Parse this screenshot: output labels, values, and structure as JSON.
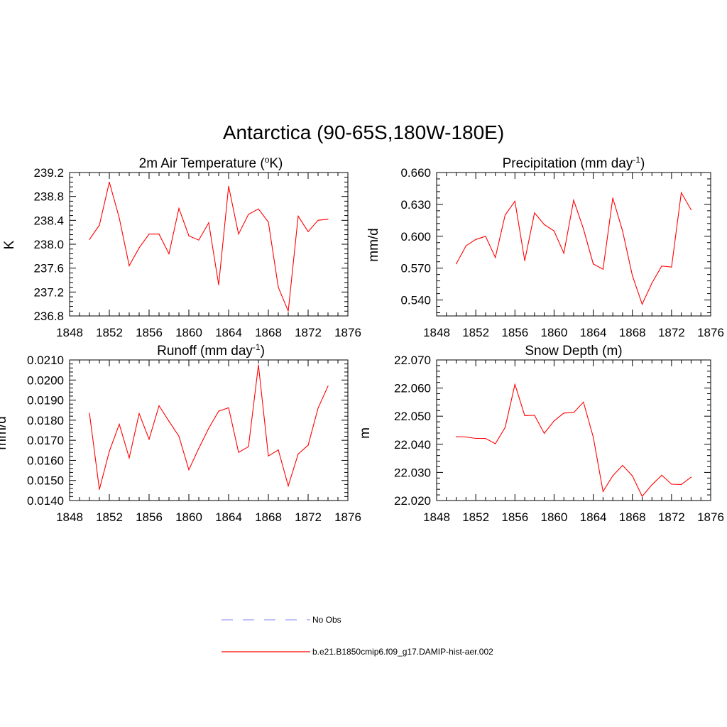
{
  "title": "Antarctica (90-65S,180W-180E)",
  "legend": [
    {
      "label": "No Obs",
      "color": "#9999ff",
      "dash": true
    },
    {
      "label": "b.e21.B1850cmip6.f09_g17.DAMIP-hist-aer.002",
      "color": "#ff0000",
      "dash": false
    }
  ],
  "chart_data": [
    {
      "type": "line",
      "title": "2m Air Temperature (oK)",
      "ylabel": "K",
      "xlim": [
        1848,
        1876
      ],
      "xticks": [
        "1848",
        "1852",
        "1856",
        "1860",
        "1864",
        "1868",
        "1872",
        "1876"
      ],
      "ylim": [
        236.8,
        239.2
      ],
      "yticks": [
        "236.8",
        "237.2",
        "237.6",
        "238.0",
        "238.4",
        "238.8",
        "239.2"
      ],
      "series": [
        {
          "color": "#ff0000",
          "x": [
            1850,
            1851,
            1852,
            1853,
            1854,
            1855,
            1856,
            1857,
            1858,
            1859,
            1860,
            1861,
            1862,
            1863,
            1864,
            1865,
            1866,
            1867,
            1868,
            1869,
            1870,
            1871,
            1872,
            1873,
            1874
          ],
          "y": [
            238.08,
            238.32,
            239.04,
            238.44,
            237.64,
            237.94,
            238.17,
            238.17,
            237.84,
            238.6,
            238.14,
            238.07,
            238.36,
            237.32,
            238.97,
            238.17,
            238.5,
            238.59,
            238.37,
            237.28,
            236.88,
            238.47,
            238.21,
            238.4,
            238.42
          ]
        }
      ]
    },
    {
      "type": "line",
      "title": "Precipitation (mm day-1)",
      "ylabel": "mm/d",
      "xlim": [
        1848,
        1876
      ],
      "xticks": [
        "1848",
        "1852",
        "1856",
        "1860",
        "1864",
        "1868",
        "1872",
        "1876"
      ],
      "ylim": [
        0.525,
        0.66
      ],
      "yticks": [
        "0.540",
        "0.570",
        "0.600",
        "0.630",
        "0.660"
      ],
      "series": [
        {
          "color": "#ff0000",
          "x": [
            1850,
            1851,
            1852,
            1853,
            1854,
            1855,
            1856,
            1857,
            1858,
            1859,
            1860,
            1861,
            1862,
            1863,
            1864,
            1865,
            1866,
            1867,
            1868,
            1869,
            1870,
            1871,
            1872,
            1873,
            1874
          ],
          "y": [
            0.574,
            0.591,
            0.597,
            0.6,
            0.58,
            0.62,
            0.633,
            0.577,
            0.622,
            0.611,
            0.605,
            0.584,
            0.634,
            0.607,
            0.574,
            0.569,
            0.636,
            0.605,
            0.563,
            0.536,
            0.556,
            0.572,
            0.571,
            0.641,
            0.625
          ]
        }
      ]
    },
    {
      "type": "line",
      "title": "Runoff (mm day-1)",
      "ylabel": "mm/d",
      "xlim": [
        1848,
        1876
      ],
      "xticks": [
        "1848",
        "1852",
        "1856",
        "1860",
        "1864",
        "1868",
        "1872",
        "1876"
      ],
      "ylim": [
        0.014,
        0.021
      ],
      "yticks": [
        "0.0140",
        "0.0150",
        "0.0160",
        "0.0170",
        "0.0180",
        "0.0190",
        "0.0200",
        "0.0210"
      ],
      "series": [
        {
          "color": "#ff0000",
          "x": [
            1850,
            1851,
            1852,
            1853,
            1854,
            1855,
            1856,
            1857,
            1858,
            1859,
            1860,
            1861,
            1862,
            1863,
            1864,
            1865,
            1866,
            1867,
            1868,
            1869,
            1870,
            1871,
            1872,
            1873,
            1874
          ],
          "y": [
            0.01835,
            0.01455,
            0.01645,
            0.0178,
            0.01612,
            0.01833,
            0.01705,
            0.01872,
            0.01795,
            0.0172,
            0.01553,
            0.0166,
            0.0176,
            0.01845,
            0.01862,
            0.0164,
            0.01668,
            0.02075,
            0.01622,
            0.01652,
            0.01473,
            0.01632,
            0.01675,
            0.0186,
            0.0197
          ]
        }
      ]
    },
    {
      "type": "line",
      "title": "Snow Depth (m)",
      "ylabel": "m",
      "xlim": [
        1848,
        1876
      ],
      "xticks": [
        "1848",
        "1852",
        "1856",
        "1860",
        "1864",
        "1868",
        "1872",
        "1876"
      ],
      "ylim": [
        22.02,
        22.07
      ],
      "yticks": [
        "22.020",
        "22.030",
        "22.040",
        "22.050",
        "22.060",
        "22.070"
      ],
      "series": [
        {
          "color": "#ff0000",
          "x": [
            1850,
            1851,
            1852,
            1853,
            1854,
            1855,
            1856,
            1857,
            1858,
            1859,
            1860,
            1861,
            1862,
            1863,
            1864,
            1865,
            1866,
            1867,
            1868,
            1869,
            1870,
            1871,
            1872,
            1873,
            1874
          ],
          "y": [
            22.0427,
            22.0426,
            22.0421,
            22.0421,
            22.0402,
            22.046,
            22.0613,
            22.0502,
            22.0503,
            22.0439,
            22.0483,
            22.0511,
            22.0513,
            22.055,
            22.0426,
            22.0232,
            22.0288,
            22.0325,
            22.0288,
            22.0215,
            22.0256,
            22.029,
            22.0258,
            22.0257,
            22.0283
          ]
        }
      ]
    }
  ]
}
